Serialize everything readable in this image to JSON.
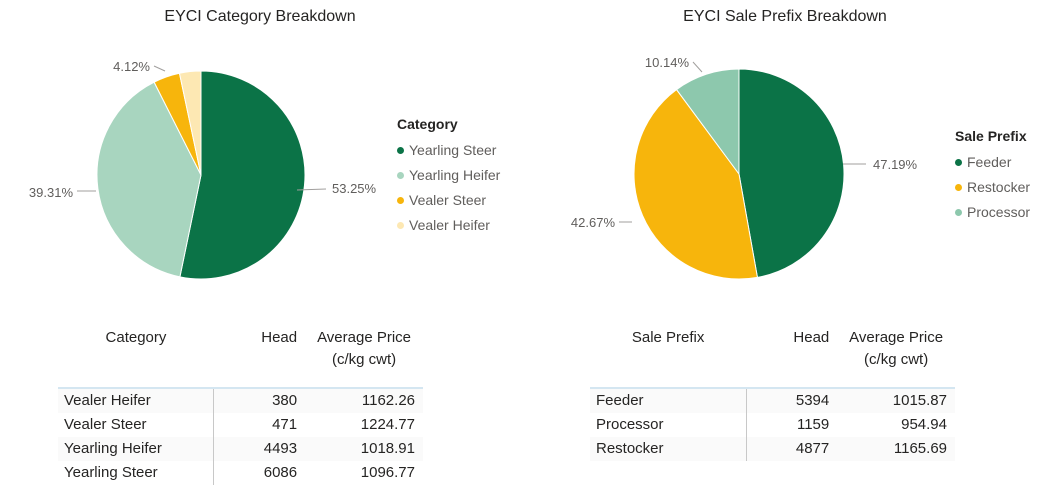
{
  "chart_data": [
    {
      "type": "pie",
      "title": "EYCI Category Breakdown",
      "legend_title": "Category",
      "legend_position": "right",
      "slices": [
        {
          "label": "Yearling Steer",
          "value": 53.25,
          "pct_label": "53.25%",
          "color": "#0b7347"
        },
        {
          "label": "Yearling Heifer",
          "value": 39.31,
          "pct_label": "39.31%",
          "color": "#a8d5bf"
        },
        {
          "label": "Vealer Steer",
          "value": 4.12,
          "pct_label": "4.12%",
          "color": "#f7b50c"
        },
        {
          "label": "Vealer Heifer",
          "value": 3.32,
          "pct_label": "",
          "color": "#fde8b3"
        }
      ]
    },
    {
      "type": "pie",
      "title": "EYCI Sale Prefix Breakdown",
      "legend_title": "Sale Prefix",
      "legend_position": "right",
      "slices": [
        {
          "label": "Feeder",
          "value": 47.19,
          "pct_label": "47.19%",
          "color": "#0b7347"
        },
        {
          "label": "Restocker",
          "value": 42.67,
          "pct_label": "42.67%",
          "color": "#f7b50c"
        },
        {
          "label": "Processor",
          "value": 10.14,
          "pct_label": "10.14%",
          "color": "#8dc8ad"
        }
      ]
    }
  ],
  "tables": [
    {
      "columns": [
        "Category",
        "Head",
        "Average Price\n(c/kg cwt)"
      ],
      "rows": [
        [
          "Vealer Heifer",
          "380",
          "1162.26"
        ],
        [
          "Vealer Steer",
          "471",
          "1224.77"
        ],
        [
          "Yearling Heifer",
          "4493",
          "1018.91"
        ],
        [
          "Yearling Steer",
          "6086",
          "1096.77"
        ]
      ]
    },
    {
      "columns": [
        "Sale Prefix",
        "Head",
        "Average Price\n(c/kg cwt)"
      ],
      "rows": [
        [
          "Feeder",
          "5394",
          "1015.87"
        ],
        [
          "Processor",
          "1159",
          "954.94"
        ],
        [
          "Restocker",
          "4877",
          "1165.69"
        ]
      ]
    }
  ]
}
